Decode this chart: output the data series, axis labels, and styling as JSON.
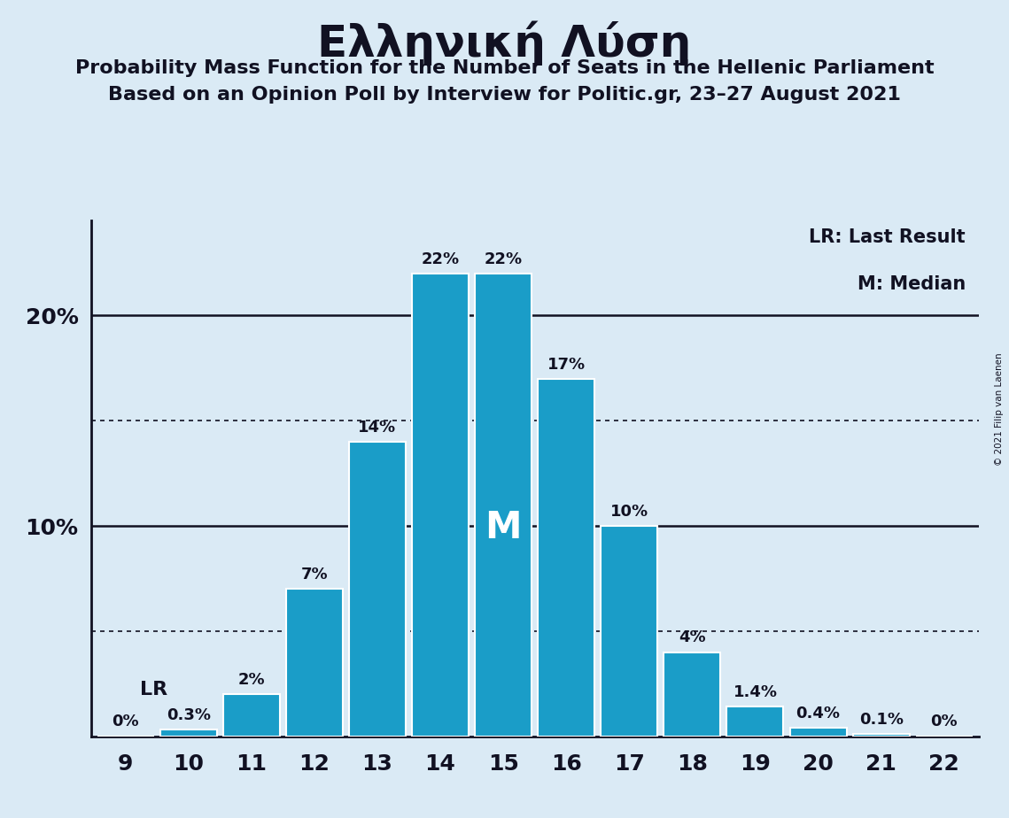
{
  "title": "Ελληνική Λύση",
  "subtitle1": "Probability Mass Function for the Number of Seats in the Hellenic Parliament",
  "subtitle2": "Based on an Opinion Poll by Interview for Politic.gr, 23–27 August 2021",
  "copyright": "© 2021 Filip van Laenen",
  "seats": [
    9,
    10,
    11,
    12,
    13,
    14,
    15,
    16,
    17,
    18,
    19,
    20,
    21,
    22
  ],
  "probabilities": [
    0.0,
    0.3,
    2.0,
    7.0,
    14.0,
    22.0,
    22.0,
    17.0,
    10.0,
    4.0,
    1.4,
    0.4,
    0.1,
    0.0
  ],
  "bar_color": "#1a9dc8",
  "background_color": "#daeaf5",
  "bar_edge_color": "#ffffff",
  "axis_line_color": "#111122",
  "text_color": "#111122",
  "lr_seat": 10,
  "median_seat": 15,
  "ylim_max": 24.5,
  "dotted_lines": [
    5,
    15
  ],
  "solid_lines": [
    10,
    20
  ],
  "legend_lr": "LR: Last Result",
  "legend_m": "M: Median"
}
